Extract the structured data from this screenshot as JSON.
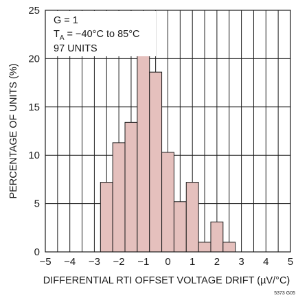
{
  "chart_data": {
    "type": "bar",
    "xlabel": "DIFFERENTIAL RTI OFFSET VOLTAGE DRIFT (µV/°C)",
    "ylabel": "PERCENTAGE OF UNITS (%)",
    "xlim": [
      -5,
      5
    ],
    "ylim": [
      0,
      25
    ],
    "xticks": [
      -5,
      -4,
      -3,
      -2,
      -1,
      0,
      1,
      2,
      3,
      4,
      5
    ],
    "yticks": [
      0,
      5,
      10,
      15,
      20,
      25
    ],
    "xtick_labels": [
      "−5",
      "−4",
      "−3",
      "−2",
      "−1",
      "0",
      "1",
      "2",
      "3",
      "4",
      "5"
    ],
    "ytick_labels": [
      "0",
      "5",
      "10",
      "15",
      "20",
      "25"
    ],
    "bin_width": 0.5,
    "bins": [
      {
        "from": -2.75,
        "to": -2.25,
        "value": 7.2
      },
      {
        "from": -2.25,
        "to": -1.75,
        "value": 11.3
      },
      {
        "from": -1.75,
        "to": -1.25,
        "value": 13.4
      },
      {
        "from": -1.25,
        "to": -0.75,
        "value": 21.6
      },
      {
        "from": -0.75,
        "to": -0.25,
        "value": 18.6
      },
      {
        "from": -0.25,
        "to": 0.25,
        "value": 10.3
      },
      {
        "from": 0.25,
        "to": 0.75,
        "value": 5.2
      },
      {
        "from": 0.75,
        "to": 1.25,
        "value": 7.2
      },
      {
        "from": 1.25,
        "to": 1.75,
        "value": 1.0
      },
      {
        "from": 1.75,
        "to": 2.25,
        "value": 3.1
      },
      {
        "from": 2.25,
        "to": 2.75,
        "value": 1.0
      }
    ],
    "grid": true,
    "bar_color": "#e5c0bd",
    "annotation": {
      "line1": "G = 1",
      "line2_T": "T",
      "line2_sub": "A",
      "line2_rest": " = −40°C to 85°C",
      "line3": "97 UNITS"
    },
    "figure_id": "5373 G05"
  }
}
